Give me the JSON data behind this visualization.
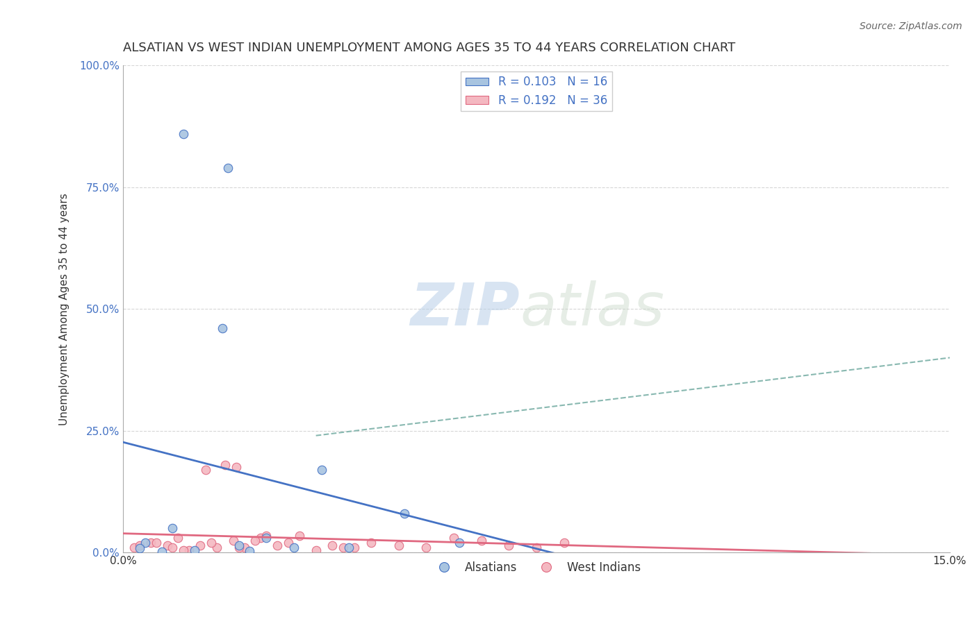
{
  "title": "ALSATIAN VS WEST INDIAN UNEMPLOYMENT AMONG AGES 35 TO 44 YEARS CORRELATION CHART",
  "source": "Source: ZipAtlas.com",
  "ylabel": "Unemployment Among Ages 35 to 44 years",
  "xlim": [
    0.0,
    15.0
  ],
  "ylim": [
    0.0,
    100.0
  ],
  "ytick_labels": [
    "0.0%",
    "25.0%",
    "50.0%",
    "75.0%",
    "100.0%"
  ],
  "ytick_values": [
    0,
    25,
    50,
    75,
    100
  ],
  "xtick_labels": [
    "0.0%",
    "15.0%"
  ],
  "xtick_values": [
    0,
    15
  ],
  "legend_labels": [
    "Alsatians",
    "West Indians"
  ],
  "alsatian_R": "0.103",
  "alsatian_N": "16",
  "westindian_R": "0.192",
  "westindian_N": "36",
  "alsatian_color": "#a8c4e0",
  "alsatian_line_color": "#4472c4",
  "westindian_color": "#f4b8c1",
  "westindian_line_color": "#e06880",
  "alsatian_scatter_x": [
    0.4,
    1.1,
    1.9,
    2.1,
    2.6,
    3.1,
    0.9,
    1.8,
    3.6,
    4.1,
    5.1,
    6.1,
    1.3,
    2.3,
    0.3,
    0.7
  ],
  "alsatian_scatter_y": [
    2.0,
    86.0,
    79.0,
    1.5,
    3.0,
    1.0,
    5.0,
    46.0,
    17.0,
    1.0,
    8.0,
    2.0,
    0.5,
    0.3,
    0.8,
    0.2
  ],
  "westindian_scatter_x": [
    0.2,
    0.5,
    0.8,
    1.0,
    1.2,
    1.5,
    1.85,
    2.0,
    2.2,
    2.5,
    2.8,
    3.0,
    3.2,
    3.5,
    4.0,
    4.5,
    5.0,
    5.5,
    6.0,
    6.5,
    7.0,
    7.5,
    8.0,
    0.3,
    0.6,
    0.9,
    1.1,
    1.4,
    1.7,
    2.1,
    2.4,
    3.8,
    2.05,
    4.2,
    1.6,
    2.6
  ],
  "westindian_scatter_y": [
    1.0,
    2.0,
    1.5,
    3.0,
    0.5,
    17.0,
    18.0,
    2.5,
    1.0,
    3.0,
    1.5,
    2.0,
    3.5,
    0.5,
    1.0,
    2.0,
    1.5,
    1.0,
    3.0,
    2.5,
    1.5,
    1.0,
    2.0,
    1.5,
    2.0,
    1.0,
    0.5,
    1.5,
    1.0,
    1.0,
    2.5,
    1.5,
    17.5,
    1.0,
    2.0,
    3.5
  ],
  "watermark_zip": "ZIP",
  "watermark_atlas": "atlas",
  "background_color": "#ffffff",
  "grid_color": "#cccccc",
  "title_fontsize": 13,
  "label_fontsize": 11,
  "tick_fontsize": 11,
  "source_fontsize": 10,
  "dashed_line_x": [
    3.5,
    15.0
  ],
  "dashed_line_y": [
    24.0,
    40.0
  ],
  "dashed_line_color": "#88b8b0"
}
